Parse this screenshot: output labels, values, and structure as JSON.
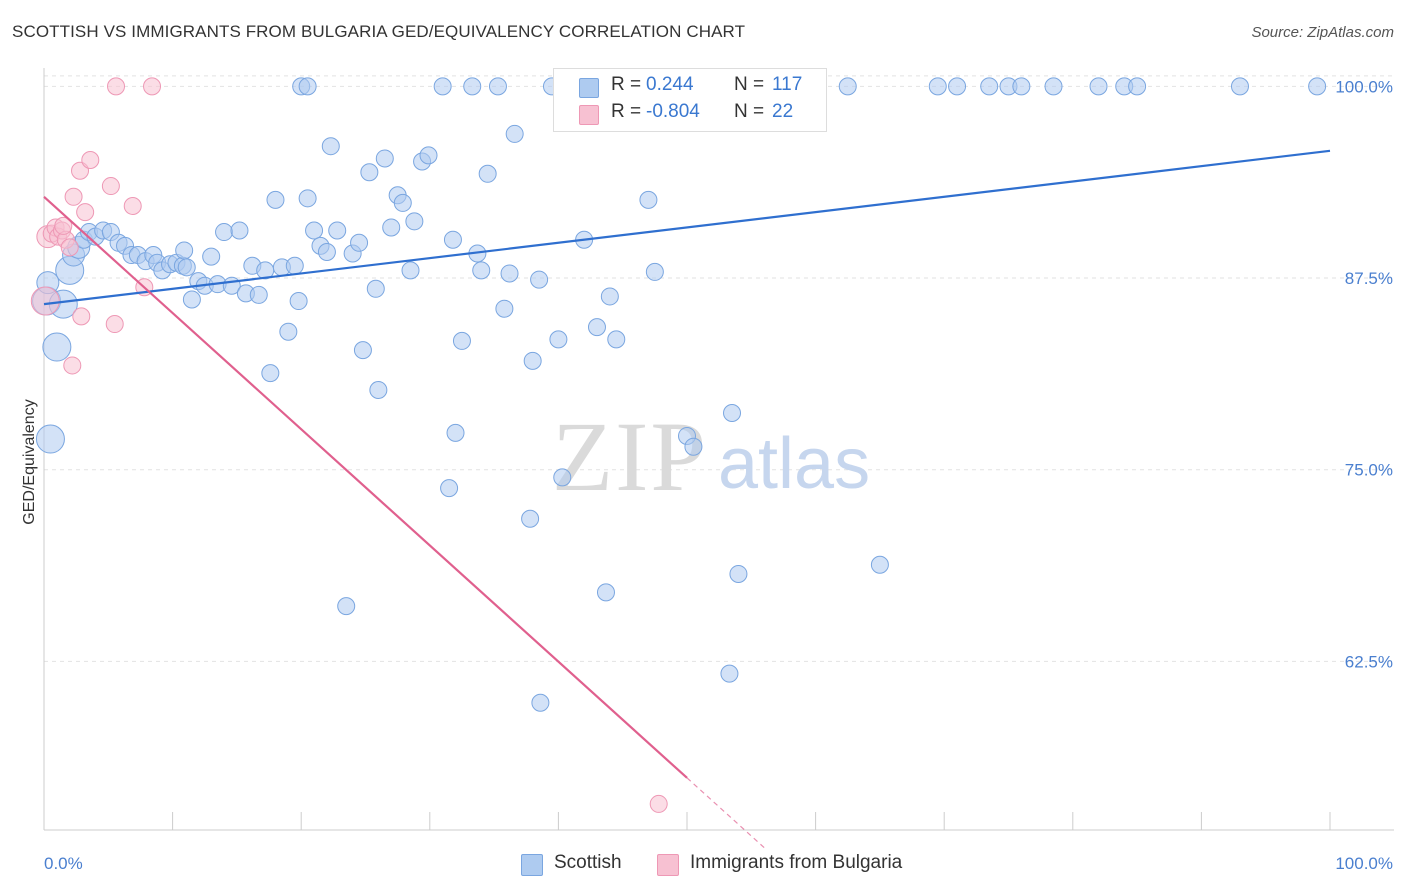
{
  "header": {
    "title": "SCOTTISH VS IMMIGRANTS FROM BULGARIA GED/EQUIVALENCY CORRELATION CHART",
    "source": "Source: ZipAtlas.com"
  },
  "watermark": {
    "zip": "ZIP",
    "atlas": "atlas"
  },
  "legend": {
    "r_label": "R =",
    "n_label": "N =",
    "rows": [
      {
        "r": "0.244",
        "n": "117"
      },
      {
        "r": "-0.804",
        "n": "22"
      }
    ]
  },
  "bottom_legend": {
    "series1": "Scottish",
    "series2": "Immigrants from Bulgaria"
  },
  "colors": {
    "scottish_fill": "#aecbf0",
    "scottish_stroke": "#7aa6e0",
    "scottish_line": "#2f6fcf",
    "bulgaria_fill": "#f7c1d2",
    "bulgaria_stroke": "#ee98b5",
    "bulgaria_line": "#e0608e",
    "tick_text": "#4a7fcf",
    "grid": "#e2e2e2"
  },
  "chart_data": {
    "type": "scatter",
    "title": "SCOTTISH VS IMMIGRANTS FROM BULGARIA GED/EQUIVALENCY CORRELATION CHART",
    "xlabel": "",
    "ylabel": "GED/Equivalency",
    "x_tick_labels": [
      "0.0%",
      "100.0%"
    ],
    "y_tick_labels": [
      "100.0%",
      "87.5%",
      "75.0%",
      "62.5%"
    ],
    "y_ticks": [
      100.0,
      87.5,
      75.0,
      62.5
    ],
    "xlim": [
      0,
      100
    ],
    "ylim": [
      51.5,
      101.2
    ],
    "grid": true,
    "legend_position": "top-center",
    "series": [
      {
        "name": "Scottish",
        "r": 0.244,
        "n": 117,
        "trend": {
          "x0": 0,
          "y0": 85.8,
          "x1": 100,
          "y1": 95.8
        },
        "points": [
          [
            0.2,
            86.0,
            3
          ],
          [
            0.3,
            87.2,
            2
          ],
          [
            1.0,
            83.0,
            3
          ],
          [
            0.5,
            77.0,
            3
          ],
          [
            1.5,
            85.8,
            3
          ],
          [
            2.0,
            88.0,
            3
          ],
          [
            2.3,
            89.0,
            2
          ],
          [
            2.7,
            89.5,
            2
          ],
          [
            3.1,
            90.0,
            1
          ],
          [
            3.5,
            90.5,
            1
          ],
          [
            4.0,
            90.2,
            1
          ],
          [
            4.6,
            90.6,
            1
          ],
          [
            5.2,
            90.5,
            1
          ],
          [
            5.8,
            89.8,
            1
          ],
          [
            6.3,
            89.6,
            1
          ],
          [
            6.8,
            89.0,
            1
          ],
          [
            7.3,
            89.0,
            1
          ],
          [
            7.9,
            88.6,
            1
          ],
          [
            8.5,
            89.0,
            1
          ],
          [
            8.8,
            88.5,
            1
          ],
          [
            9.2,
            88.0,
            1
          ],
          [
            9.8,
            88.4,
            1
          ],
          [
            10.3,
            88.5,
            1
          ],
          [
            10.8,
            88.3,
            1
          ],
          [
            11.1,
            88.2,
            1
          ],
          [
            10.9,
            89.3,
            1
          ],
          [
            11.5,
            86.1,
            1
          ],
          [
            12.0,
            87.3,
            1
          ],
          [
            12.5,
            87.0,
            1
          ],
          [
            13.0,
            88.9,
            1
          ],
          [
            13.5,
            87.1,
            1
          ],
          [
            14.0,
            90.5,
            1
          ],
          [
            14.6,
            87.0,
            1
          ],
          [
            15.2,
            90.6,
            1
          ],
          [
            15.7,
            86.5,
            1
          ],
          [
            16.2,
            88.3,
            1
          ],
          [
            16.7,
            86.4,
            1
          ],
          [
            17.2,
            88.0,
            1
          ],
          [
            17.6,
            81.3,
            1
          ],
          [
            18.0,
            92.6,
            1
          ],
          [
            18.5,
            88.2,
            1
          ],
          [
            19.0,
            84.0,
            1
          ],
          [
            19.5,
            88.3,
            1
          ],
          [
            19.8,
            86.0,
            1
          ],
          [
            20.5,
            92.7,
            1
          ],
          [
            21.0,
            90.6,
            1
          ],
          [
            21.5,
            89.6,
            1
          ],
          [
            22.0,
            89.2,
            1
          ],
          [
            22.3,
            96.1,
            1
          ],
          [
            22.8,
            90.6,
            1
          ],
          [
            23.5,
            66.1,
            1
          ],
          [
            24.0,
            89.1,
            1
          ],
          [
            24.5,
            89.8,
            1
          ],
          [
            24.8,
            82.8,
            1
          ],
          [
            25.3,
            94.4,
            1
          ],
          [
            25.8,
            86.8,
            1
          ],
          [
            26.0,
            80.2,
            1
          ],
          [
            26.5,
            95.3,
            1
          ],
          [
            27.0,
            90.8,
            1
          ],
          [
            27.5,
            92.9,
            1
          ],
          [
            27.9,
            92.4,
            1
          ],
          [
            28.5,
            88.0,
            1
          ],
          [
            28.8,
            91.2,
            1
          ],
          [
            29.4,
            95.1,
            1
          ],
          [
            29.9,
            95.5,
            1
          ],
          [
            31.0,
            100.0,
            1
          ],
          [
            31.5,
            73.8,
            1
          ],
          [
            31.8,
            90.0,
            1
          ],
          [
            32.0,
            77.4,
            1
          ],
          [
            32.5,
            83.4,
            1
          ],
          [
            33.3,
            100.0,
            1
          ],
          [
            33.7,
            89.1,
            1
          ],
          [
            34.0,
            88.0,
            1
          ],
          [
            34.5,
            94.3,
            1
          ],
          [
            35.3,
            100.0,
            1
          ],
          [
            35.8,
            85.5,
            1
          ],
          [
            36.2,
            87.8,
            1
          ],
          [
            36.6,
            96.9,
            1
          ],
          [
            37.8,
            71.8,
            1
          ],
          [
            38.0,
            82.1,
            1
          ],
          [
            38.5,
            87.4,
            1
          ],
          [
            38.6,
            59.8,
            1
          ],
          [
            39.5,
            100.0,
            1
          ],
          [
            40.0,
            83.5,
            1
          ],
          [
            40.3,
            74.5,
            1
          ],
          [
            42.0,
            90.0,
            1
          ],
          [
            42.7,
            100.0,
            1
          ],
          [
            43.0,
            84.3,
            1
          ],
          [
            43.7,
            67.0,
            1
          ],
          [
            44.0,
            86.3,
            1
          ],
          [
            44.5,
            83.5,
            1
          ],
          [
            46.5,
            100.0,
            1
          ],
          [
            47.0,
            92.6,
            1
          ],
          [
            47.5,
            87.9,
            1
          ],
          [
            50.0,
            77.2,
            1
          ],
          [
            50.5,
            76.5,
            1
          ],
          [
            53.5,
            78.7,
            1
          ],
          [
            53.3,
            61.7,
            1
          ],
          [
            54.0,
            68.2,
            1
          ],
          [
            57.0,
            100.0,
            1
          ],
          [
            59.5,
            100.0,
            1
          ],
          [
            62.5,
            100.0,
            1
          ],
          [
            65.0,
            68.8,
            1
          ],
          [
            69.5,
            100.0,
            1
          ],
          [
            71.0,
            100.0,
            1
          ],
          [
            73.5,
            100.0,
            1
          ],
          [
            75.0,
            100.0,
            1
          ],
          [
            76.0,
            100.0,
            1
          ],
          [
            78.5,
            100.0,
            1
          ],
          [
            82.0,
            100.0,
            1
          ],
          [
            84.0,
            100.0,
            1
          ],
          [
            85.0,
            100.0,
            1
          ],
          [
            93.0,
            100.0,
            1
          ],
          [
            99.0,
            100.0,
            1
          ],
          [
            20.0,
            100.0,
            1
          ],
          [
            20.5,
            100.0,
            1
          ],
          [
            58.0,
            100.0,
            1
          ],
          [
            54.8,
            100.0,
            1
          ]
        ]
      },
      {
        "name": "Immigrants from Bulgaria",
        "r": -0.804,
        "n": 22,
        "trend": {
          "x0": 0,
          "y0": 92.8,
          "x1": 50,
          "y1": 54.9,
          "dash_to_x": 56.0
        },
        "points": [
          [
            0.1,
            86.0,
            3
          ],
          [
            0.3,
            90.2,
            2
          ],
          [
            0.6,
            90.4,
            1
          ],
          [
            0.9,
            90.8,
            1
          ],
          [
            1.1,
            90.2,
            1
          ],
          [
            1.4,
            90.6,
            1
          ],
          [
            1.7,
            90.0,
            1
          ],
          [
            2.0,
            89.5,
            1
          ],
          [
            2.2,
            81.8,
            1
          ],
          [
            2.3,
            92.8,
            1
          ],
          [
            2.8,
            94.5,
            1
          ],
          [
            2.9,
            85.0,
            1
          ],
          [
            3.2,
            91.8,
            1
          ],
          [
            3.6,
            95.2,
            1
          ],
          [
            5.2,
            93.5,
            1
          ],
          [
            5.5,
            84.5,
            1
          ],
          [
            6.9,
            92.2,
            1
          ],
          [
            7.8,
            86.9,
            1
          ],
          [
            5.6,
            100.0,
            1
          ],
          [
            8.4,
            100.0,
            1
          ],
          [
            47.8,
            53.2,
            1
          ],
          [
            1.5,
            90.9,
            1
          ]
        ]
      }
    ]
  }
}
